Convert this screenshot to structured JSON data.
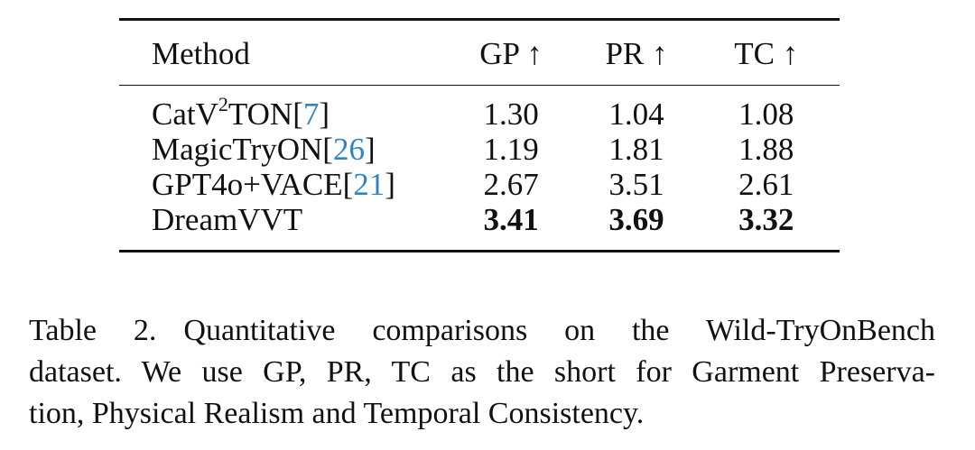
{
  "table": {
    "headers": [
      "Method",
      "GP ↑",
      "PR ↑",
      "TC ↑"
    ],
    "rows": [
      {
        "method_prefix": "CatV",
        "method_sup": "2",
        "method_suffix": "TON",
        "cite_open": "[",
        "cite": "7",
        "cite_close": "]",
        "gp": "1.30",
        "pr": "1.04",
        "tc": "1.08"
      },
      {
        "method_prefix": "MagicTryON",
        "cite_open": "[",
        "cite": "26",
        "cite_close": "]",
        "gp": "1.19",
        "pr": "1.81",
        "tc": "1.88"
      },
      {
        "method_prefix": "GPT4o+VACE",
        "cite_open": "[",
        "cite": "21",
        "cite_close": "]",
        "gp": "2.67",
        "pr": "3.51",
        "tc": "2.61"
      },
      {
        "method_prefix": "DreamVVT",
        "gp": "3.41",
        "pr": "3.69",
        "tc": "3.32"
      }
    ]
  },
  "caption": {
    "label": "Table 2.",
    "line1": "Quantitative comparisons on the Wild-TryOnBench",
    "line2": "dataset. We use GP, PR, TC as the short for Garment Preserva-",
    "line3": "tion, Physical Realism and Temporal Consistency."
  },
  "colors": {
    "citation": "#2e86c1",
    "text": "#111111"
  }
}
